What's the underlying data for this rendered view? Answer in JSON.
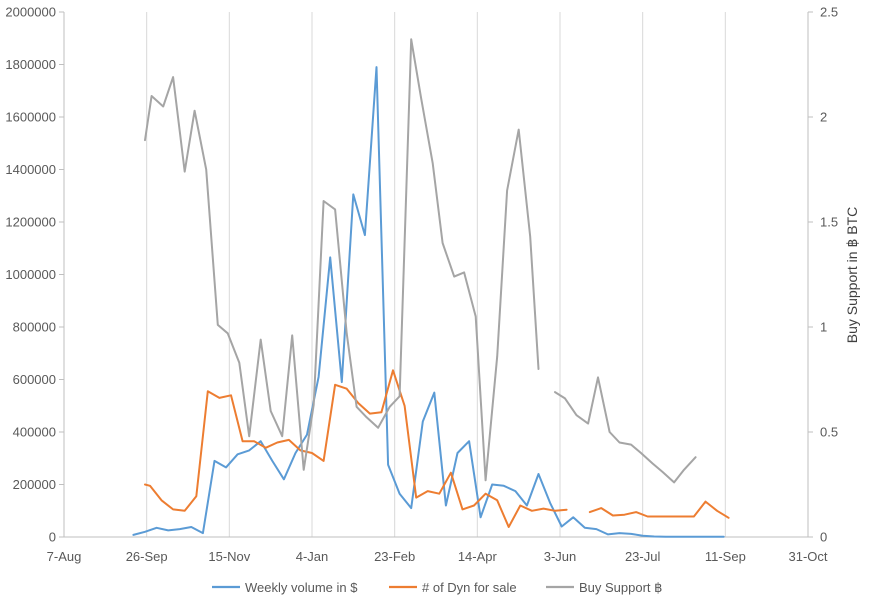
{
  "chart_data": {
    "type": "line",
    "title": "",
    "xlabel": "",
    "ylabel": "",
    "y2label": "Buy Support in ฿ BTC",
    "x_tick_labels": [
      "7-Aug",
      "26-Sep",
      "15-Nov",
      "4-Jan",
      "23-Feb",
      "14-Apr",
      "3-Jun",
      "23-Jul",
      "11-Sep",
      "31-Oct"
    ],
    "xlim": [
      0,
      450
    ],
    "ylim": [
      0,
      2000000
    ],
    "y_ticks": [
      0,
      200000,
      400000,
      600000,
      800000,
      1000000,
      1200000,
      1400000,
      1600000,
      1800000,
      2000000
    ],
    "y_tick_labels": [
      "0",
      "200000",
      "400000",
      "600000",
      "800000",
      "1000000",
      "1200000",
      "1400000",
      "1600000",
      "1800000",
      "2000000"
    ],
    "y2lim": [
      0,
      2.5
    ],
    "y2_ticks": [
      0,
      0.5,
      1,
      1.5,
      2,
      2.5
    ],
    "y2_tick_labels": [
      "0",
      "0.5",
      "1",
      "1.5",
      "2",
      "2.5"
    ],
    "grid": "vertical",
    "legend_position": "bottom",
    "series": [
      {
        "name": "Weekly volume in $",
        "axis": "left",
        "color": "#5b9bd5",
        "points": [
          [
            42,
            8000
          ],
          [
            49,
            20000
          ],
          [
            56,
            35000
          ],
          [
            63,
            25000
          ],
          [
            70,
            30000
          ],
          [
            77,
            38000
          ],
          [
            84,
            15000
          ],
          [
            91,
            290000
          ],
          [
            98,
            265000
          ],
          [
            105,
            315000
          ],
          [
            112,
            330000
          ],
          [
            119,
            365000
          ],
          [
            126,
            290000
          ],
          [
            133,
            220000
          ],
          [
            140,
            320000
          ],
          [
            147,
            390000
          ],
          [
            154,
            610000
          ],
          [
            161,
            1065000
          ],
          [
            168,
            590000
          ],
          [
            175,
            1305000
          ],
          [
            182,
            1150000
          ],
          [
            189,
            1790000
          ],
          [
            196,
            275000
          ],
          [
            203,
            165000
          ],
          [
            210,
            110000
          ],
          [
            217,
            440000
          ],
          [
            224,
            550000
          ],
          [
            231,
            120000
          ],
          [
            238,
            320000
          ],
          [
            245,
            365000
          ],
          [
            252,
            75000
          ],
          [
            259,
            200000
          ],
          [
            266,
            195000
          ],
          [
            273,
            175000
          ],
          [
            280,
            120000
          ],
          [
            287,
            240000
          ],
          [
            294,
            130000
          ],
          [
            301,
            40000
          ],
          [
            308,
            75000
          ],
          [
            315,
            35000
          ],
          [
            322,
            30000
          ],
          [
            329,
            10000
          ],
          [
            336,
            15000
          ],
          [
            343,
            12000
          ],
          [
            350,
            5000
          ],
          [
            357,
            2000
          ],
          [
            364,
            1000
          ],
          [
            371,
            1000
          ],
          [
            378,
            1000
          ],
          [
            385,
            1000
          ],
          [
            392,
            1000
          ],
          [
            399,
            1000
          ]
        ]
      },
      {
        "name": "# of Dyn for sale",
        "axis": "left",
        "color": "#ed7d31",
        "segments": [
          [
            [
              49,
              200000
            ],
            [
              52,
              195000
            ],
            [
              59,
              140000
            ],
            [
              66,
              105000
            ],
            [
              73,
              100000
            ],
            [
              80,
              155000
            ],
            [
              87,
              555000
            ],
            [
              94,
              530000
            ],
            [
              101,
              540000
            ],
            [
              108,
              365000
            ],
            [
              115,
              365000
            ],
            [
              122,
              340000
            ],
            [
              129,
              360000
            ],
            [
              136,
              370000
            ],
            [
              143,
              330000
            ],
            [
              150,
              320000
            ],
            [
              157,
              290000
            ],
            [
              164,
              580000
            ],
            [
              171,
              565000
            ],
            [
              178,
              510000
            ],
            [
              185,
              470000
            ],
            [
              192,
              475000
            ],
            [
              199,
              635000
            ],
            [
              206,
              500000
            ],
            [
              213,
              150000
            ],
            [
              220,
              175000
            ],
            [
              227,
              165000
            ],
            [
              234,
              245000
            ],
            [
              241,
              105000
            ],
            [
              248,
              120000
            ],
            [
              255,
              165000
            ],
            [
              262,
              140000
            ],
            [
              269,
              38000
            ],
            [
              276,
              120000
            ],
            [
              283,
              100000
            ],
            [
              290,
              108000
            ],
            [
              297,
              100000
            ],
            [
              304,
              104000
            ]
          ],
          [
            [
              318,
              95000
            ],
            [
              325,
              110000
            ],
            [
              332,
              82000
            ],
            [
              339,
              85000
            ],
            [
              346,
              95000
            ],
            [
              353,
              78000
            ],
            [
              360,
              78000
            ],
            [
              367,
              78000
            ],
            [
              374,
              78000
            ],
            [
              381,
              78000
            ],
            [
              388,
              135000
            ],
            [
              395,
              100000
            ],
            [
              402,
              73000
            ]
          ]
        ]
      },
      {
        "name": "Buy Support ฿",
        "axis": "right",
        "color": "#a5a5a5",
        "segments": [
          [
            [
              49,
              1.89
            ],
            [
              53,
              2.1
            ],
            [
              60,
              2.05
            ],
            [
              66,
              2.19
            ],
            [
              73,
              1.74
            ],
            [
              79,
              2.03
            ],
            [
              86,
              1.75
            ],
            [
              93,
              1.01
            ],
            [
              99,
              0.97
            ],
            [
              106,
              0.83
            ],
            [
              112,
              0.48
            ],
            [
              119,
              0.94
            ],
            [
              125,
              0.6
            ],
            [
              132,
              0.48
            ],
            [
              138,
              0.96
            ],
            [
              145,
              0.32
            ],
            [
              151,
              0.63
            ],
            [
              157,
              1.6
            ],
            [
              164,
              1.56
            ],
            [
              171,
              0.97
            ],
            [
              177,
              0.62
            ],
            [
              183,
              0.57
            ],
            [
              190,
              0.52
            ],
            [
              197,
              0.62
            ],
            [
              203,
              0.67
            ],
            [
              210,
              2.37
            ],
            [
              216,
              2.09
            ],
            [
              223,
              1.78
            ],
            [
              229,
              1.4
            ],
            [
              236,
              1.24
            ],
            [
              242,
              1.26
            ],
            [
              249,
              1.05
            ],
            [
              255,
              0.27
            ],
            [
              262,
              0.86
            ],
            [
              268,
              1.65
            ],
            [
              275,
              1.94
            ],
            [
              282,
              1.43
            ],
            [
              287,
              0.8
            ]
          ],
          [
            [
              297,
              0.69
            ],
            [
              303,
              0.66
            ],
            [
              310,
              0.58
            ],
            [
              317,
              0.54
            ],
            [
              323,
              0.76
            ],
            [
              330,
              0.5
            ],
            [
              336,
              0.45
            ],
            [
              343,
              0.44
            ],
            [
              349,
              0.4
            ],
            [
              356,
              0.35
            ],
            [
              362,
              0.31
            ],
            [
              369,
              0.26
            ],
            [
              375,
              0.32
            ],
            [
              382,
              0.38
            ]
          ]
        ]
      }
    ]
  }
}
